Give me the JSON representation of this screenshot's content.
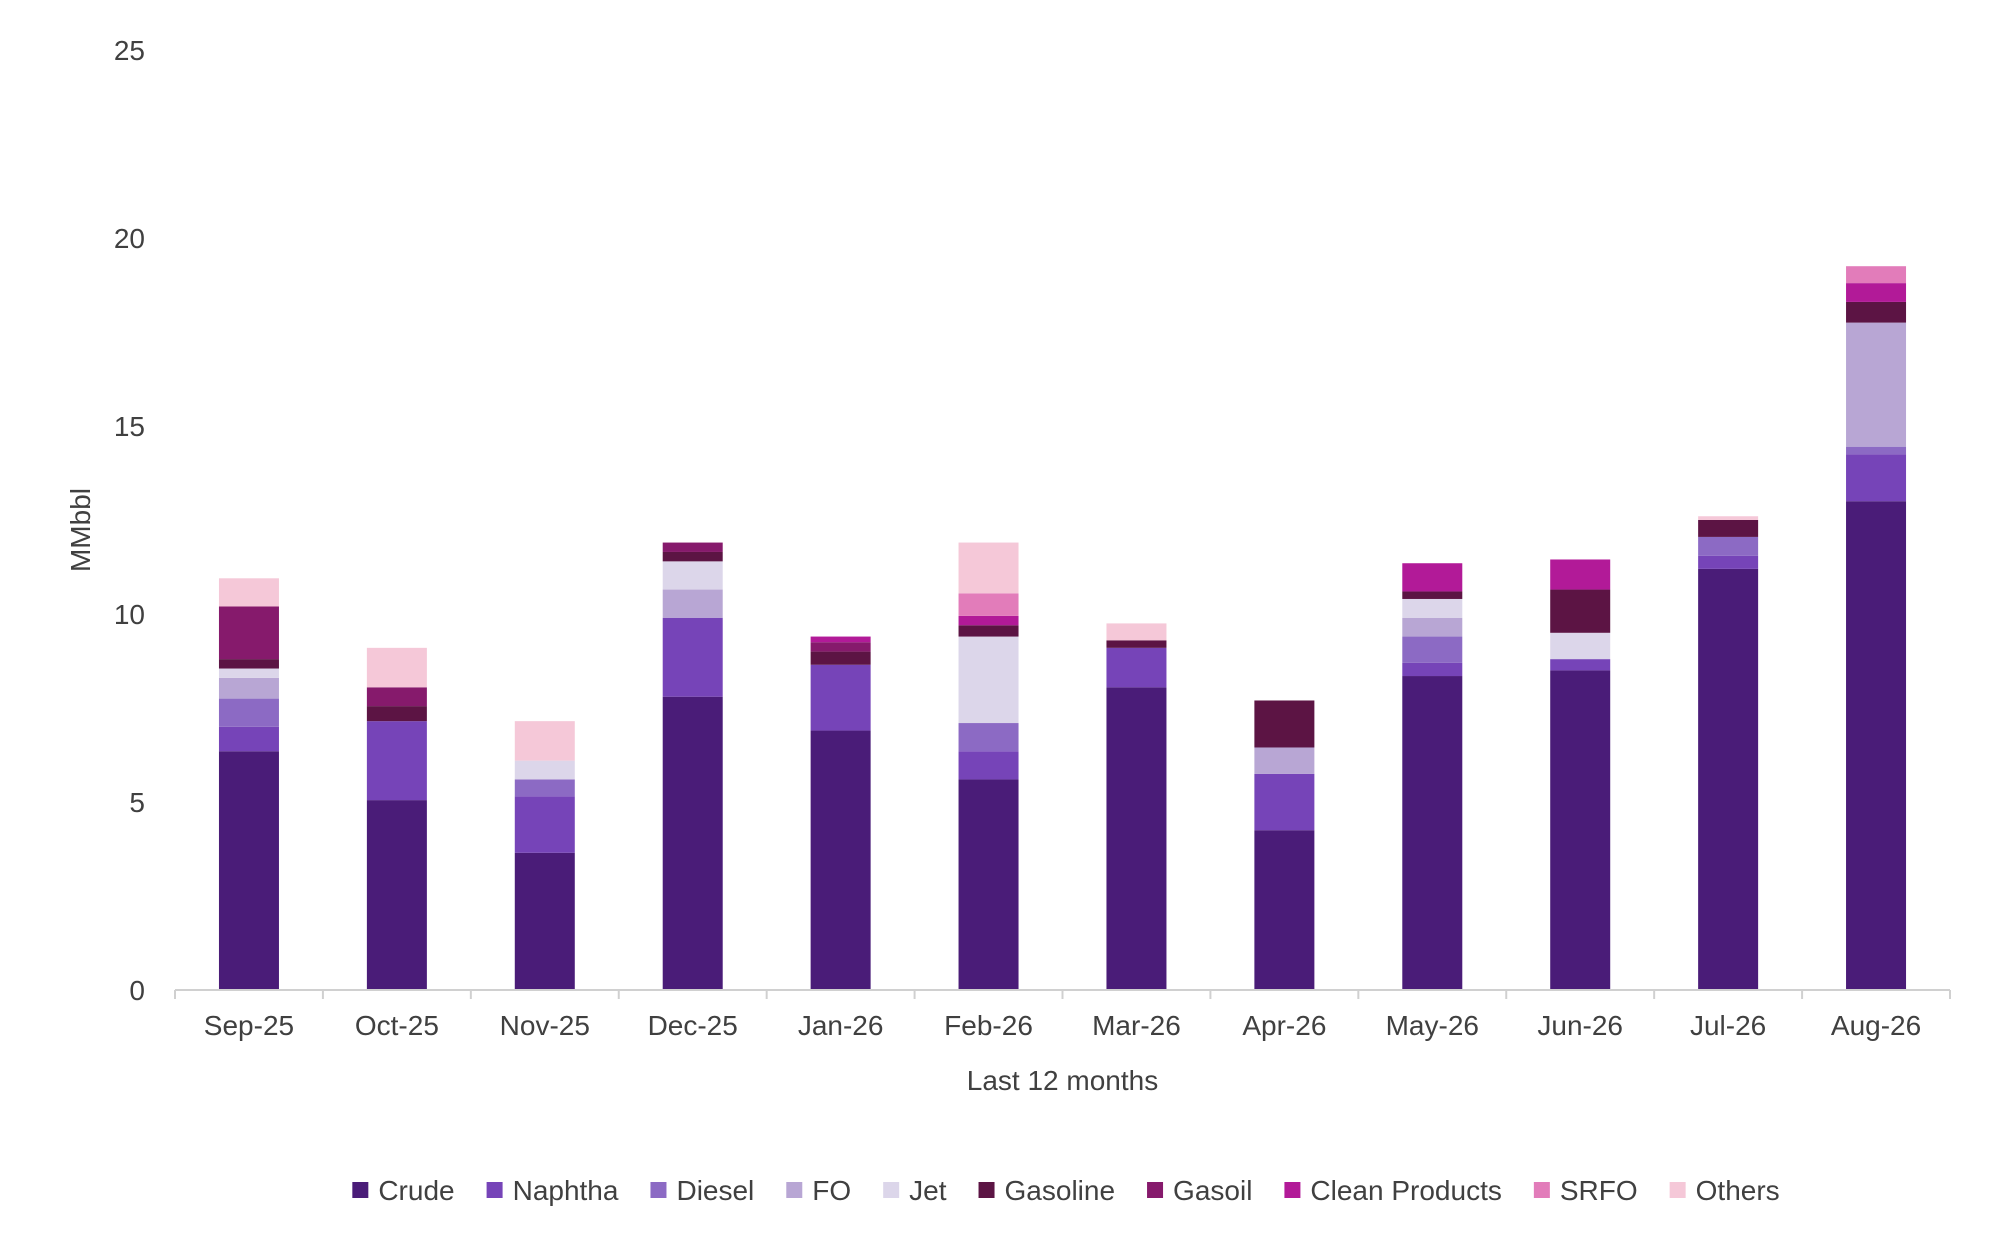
{
  "chart_data": {
    "type": "bar",
    "stacked": true,
    "title": "",
    "xlabel": "Last 12 months",
    "ylabel": "MMbbl",
    "ylim": [
      0,
      25
    ],
    "yticks": [
      "0",
      "5",
      "10",
      "15",
      "20",
      "25"
    ],
    "ytick_values": [
      0,
      5,
      10,
      15,
      20,
      25
    ],
    "grid": false,
    "legend_position": "bottom",
    "categories": [
      "Sep-25",
      "Oct-25",
      "Nov-25",
      "Dec-25",
      "Jan-26",
      "Feb-26",
      "Mar-26",
      "Apr-26",
      "May-26",
      "Jun-26",
      "Jul-26",
      "Aug-26"
    ],
    "series": [
      {
        "name": "Crude",
        "color": "#4a1c78",
        "values": [
          6.35,
          5.05,
          3.65,
          7.8,
          6.9,
          5.6,
          8.05,
          4.25,
          8.35,
          8.5,
          11.2,
          13.0
        ]
      },
      {
        "name": "Naphtha",
        "color": "#7644b8",
        "values": [
          0.65,
          2.1,
          1.5,
          2.1,
          1.75,
          0.75,
          1.05,
          1.5,
          0.35,
          0.3,
          0.35,
          1.25
        ]
      },
      {
        "name": "Diesel",
        "color": "#8c6ac4",
        "values": [
          0.75,
          0,
          0.45,
          0,
          0,
          0.75,
          0,
          0,
          0.7,
          0,
          0.5,
          0.2
        ]
      },
      {
        "name": "FO",
        "color": "#b8a6d4",
        "values": [
          0.55,
          0,
          0,
          0.75,
          0,
          0,
          0,
          0.7,
          0.5,
          0,
          0,
          3.3
        ]
      },
      {
        "name": "Jet",
        "color": "#dcd6ea",
        "values": [
          0.25,
          0,
          0.5,
          0.75,
          0,
          2.3,
          0,
          0,
          0.5,
          0.7,
          0,
          0
        ]
      },
      {
        "name": "Gasoline",
        "color": "#5c1444",
        "values": [
          0.25,
          0.4,
          0,
          0.25,
          0.35,
          0.3,
          0.2,
          1.25,
          0.2,
          1.15,
          0.45,
          0.55
        ]
      },
      {
        "name": "Gasoil",
        "color": "#861a6c",
        "values": [
          1.4,
          0.5,
          0,
          0.25,
          0.25,
          0,
          0,
          0,
          0,
          0,
          0,
          0
        ]
      },
      {
        "name": "Clean Products",
        "color": "#b21a98",
        "values": [
          0,
          0,
          0,
          0,
          0.15,
          0.25,
          0,
          0,
          0.75,
          0.8,
          0,
          0.5
        ]
      },
      {
        "name": "SRFO",
        "color": "#e27cba",
        "values": [
          0,
          0,
          0,
          0,
          0,
          0.6,
          0,
          0,
          0,
          0,
          0,
          0.45
        ]
      },
      {
        "name": "Others",
        "color": "#f5c8d8",
        "values": [
          0.75,
          1.05,
          1.05,
          0,
          0,
          1.35,
          0.45,
          0,
          0,
          0,
          0.1,
          0
        ]
      }
    ]
  }
}
